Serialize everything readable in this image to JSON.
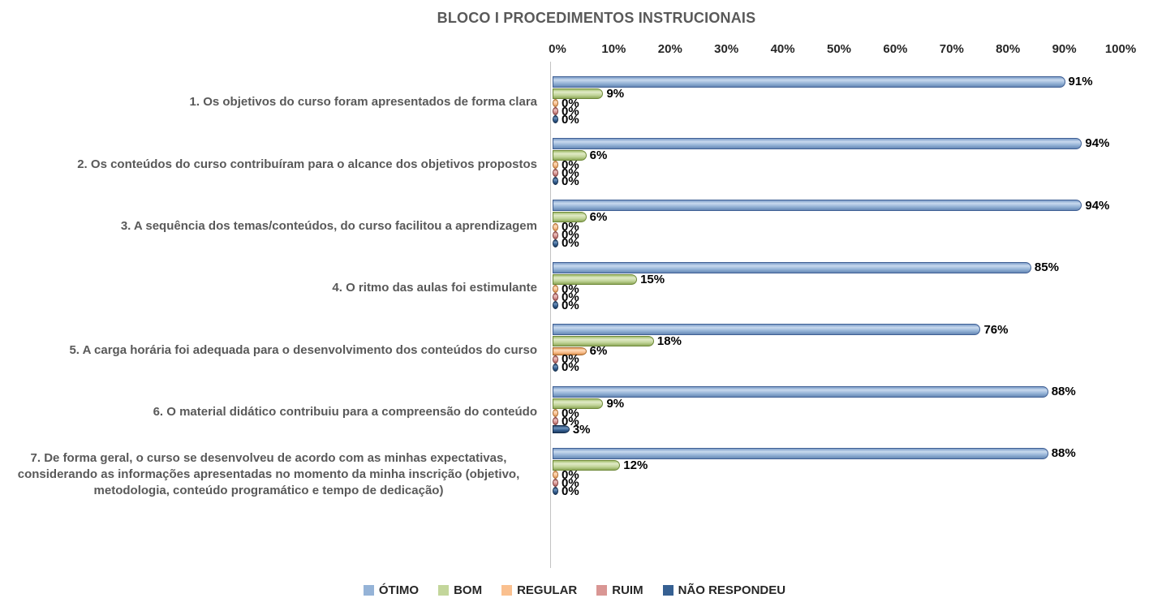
{
  "chart_data": {
    "type": "bar",
    "orientation": "horizontal",
    "style": "clustered-cylinder",
    "title": "BLOCO I PROCEDIMENTOS INSTRUCIONAIS",
    "xlabel": "",
    "ylabel": "",
    "xlim": [
      0,
      100
    ],
    "x_ticks": [
      "0%",
      "10%",
      "20%",
      "30%",
      "40%",
      "50%",
      "60%",
      "70%",
      "80%",
      "90%",
      "100%"
    ],
    "grid": false,
    "axis_position": "top",
    "legend_position": "bottom",
    "value_label_format": "{value}%",
    "categories": [
      "1. Os objetivos do curso foram apresentados de forma clara",
      "2. Os conteúdos do curso contribuíram para o alcance dos objetivos propostos",
      "3. A sequência dos temas/conteúdos, do curso facilitou a aprendizagem",
      "4. O ritmo das aulas foi estimulante",
      "5. A carga horária foi adequada para o desenvolvimento dos conteúdos do curso",
      "6. O material didático contribuiu para a compreensão do conteúdo",
      "7. De forma geral, o curso se desenvolveu de acordo com as minhas expectativas, considerando as informações apresentadas no momento da minha inscrição (objetivo, metodologia, conteúdo programático e tempo de dedicação)"
    ],
    "series": [
      {
        "name": "ÓTIMO",
        "color": "#95B3D7",
        "values": [
          91,
          94,
          94,
          85,
          76,
          88,
          88
        ]
      },
      {
        "name": "BOM",
        "color": "#C3D69B",
        "values": [
          9,
          6,
          6,
          15,
          18,
          9,
          12
        ]
      },
      {
        "name": "REGULAR",
        "color": "#FAC08F",
        "values": [
          0,
          0,
          0,
          0,
          6,
          0,
          0
        ]
      },
      {
        "name": "RUIM",
        "color": "#D99694",
        "values": [
          0,
          0,
          0,
          0,
          0,
          0,
          0
        ]
      },
      {
        "name": "NÃO RESPONDEU",
        "color": "#366092",
        "values": [
          0,
          0,
          0,
          0,
          0,
          3,
          0
        ]
      }
    ],
    "colors": {
      "title_text": "#595959",
      "category_text": "#595959",
      "tick_text": "#262626",
      "value_text": "#000000",
      "axis_line": "#C3C3C3",
      "background": "#FFFFFF"
    }
  }
}
